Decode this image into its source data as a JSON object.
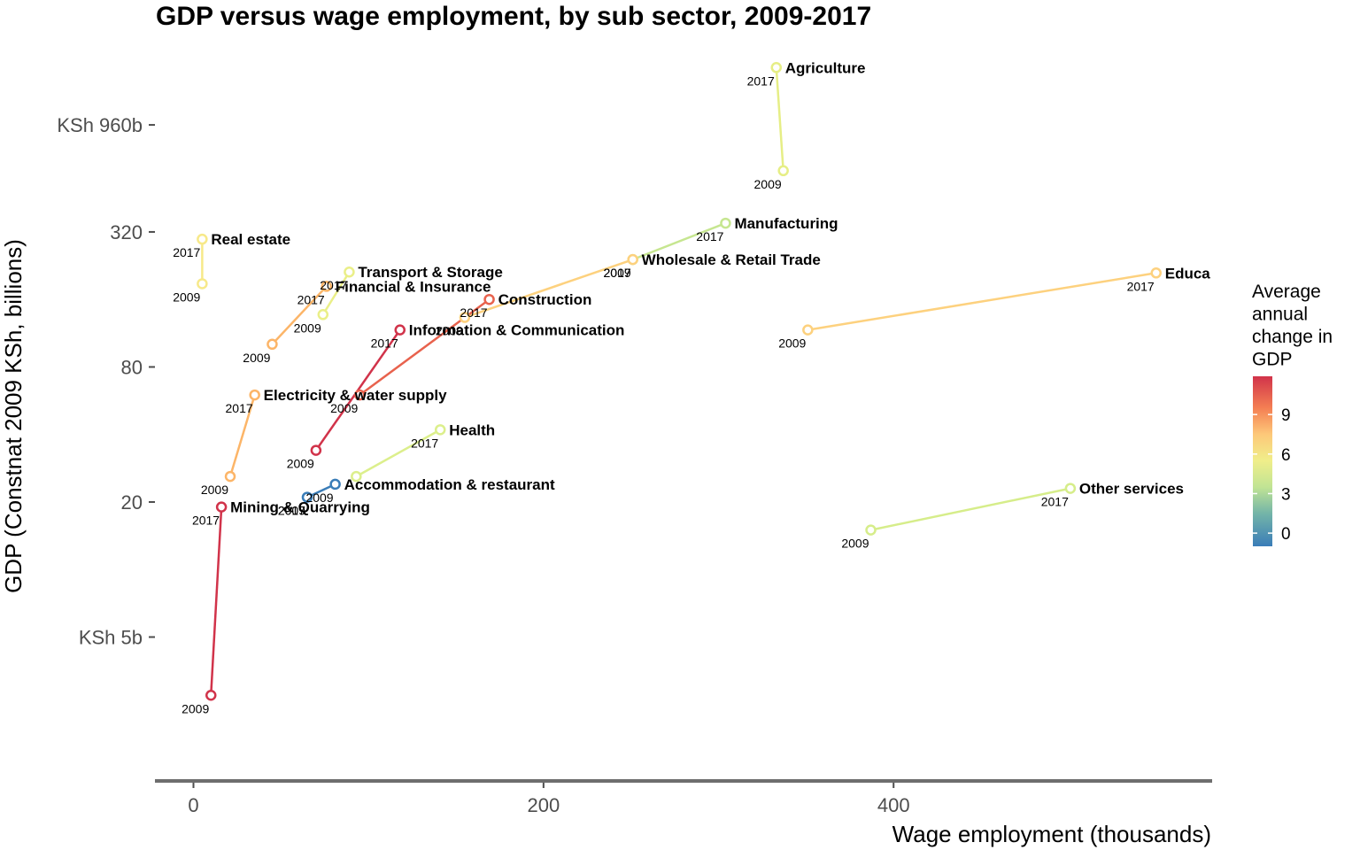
{
  "chart_data": {
    "type": "scatter",
    "title": "GDP versus wage employment, by sub sector, 2009-2017",
    "xlabel": "Wage employment (thousands)",
    "ylabel": "GDP (Constnat 2009 KSh, billions)",
    "x_scale": "linear",
    "y_scale": "log",
    "xlim": [
      -22,
      582
    ],
    "ylim": [
      1.25,
      2450
    ],
    "x_ticks": [
      {
        "value": 0,
        "label": "0"
      },
      {
        "value": 200,
        "label": "200"
      },
      {
        "value": 400,
        "label": "400"
      }
    ],
    "y_ticks": [
      {
        "value": 5,
        "label": "KSh 5b"
      },
      {
        "value": 20,
        "label": "20"
      },
      {
        "value": 80,
        "label": "80"
      },
      {
        "value": 320,
        "label": "320"
      },
      {
        "value": 960,
        "label": "KSh 960b"
      }
    ],
    "grid": false,
    "legend": {
      "title_lines": [
        "Average",
        "annual",
        "change in",
        "GDP"
      ],
      "position": "right",
      "type": "colorbar",
      "range": [
        -1,
        11.9
      ],
      "ticks": [
        {
          "value": 0,
          "label": "0"
        },
        {
          "value": 3,
          "label": "3"
        },
        {
          "value": 6,
          "label": "6"
        },
        {
          "value": 9,
          "label": "9"
        }
      ],
      "gradient": [
        {
          "value": -1,
          "color": "#3a7db8"
        },
        {
          "value": 1.5,
          "color": "#74b5a8"
        },
        {
          "value": 3.5,
          "color": "#c1e494"
        },
        {
          "value": 5.5,
          "color": "#f0ee8a"
        },
        {
          "value": 7.5,
          "color": "#fdc879"
        },
        {
          "value": 9.5,
          "color": "#f47f53"
        },
        {
          "value": 11.9,
          "color": "#d1334a"
        }
      ]
    },
    "series": [
      {
        "name": "Agriculture",
        "change": 5.2,
        "color": "#e6ee86",
        "x_2009": 337,
        "gdp_2009": 600,
        "x_2017": 333,
        "gdp_2017": 1730
      },
      {
        "name": "Manufacturing",
        "change": 4.0,
        "color": "#c6e690",
        "x_2009": 251,
        "gdp_2009": 241,
        "x_2017": 304,
        "gdp_2017": 350
      },
      {
        "name": "Wholesale & Retail Trade",
        "change": 6.8,
        "color": "#fdd17e",
        "x_2009": 155,
        "gdp_2009": 133,
        "x_2017": 251,
        "gdp_2017": 241
      },
      {
        "name": "Education",
        "label": "Educa",
        "change": 6.7,
        "color": "#fdd17e",
        "x_2009": 351,
        "gdp_2009": 117,
        "x_2017": 550,
        "gdp_2017": 210
      },
      {
        "name": "Real estate",
        "change": 5.5,
        "color": "#f7e98a",
        "x_2009": 5,
        "gdp_2009": 188,
        "x_2017": 5,
        "gdp_2017": 297
      },
      {
        "name": "Transport & Storage",
        "change": 5.0,
        "color": "#eaef88",
        "x_2009": 74,
        "gdp_2009": 137,
        "x_2017": 89,
        "gdp_2017": 212
      },
      {
        "name": "Financial & Insurance",
        "change": 7.3,
        "color": "#fcb568",
        "x_2009": 45,
        "gdp_2009": 101,
        "x_2017": 76,
        "gdp_2017": 183
      },
      {
        "name": "Construction",
        "change": 10.5,
        "color": "#e8624d",
        "x_2009": 95,
        "gdp_2009": 60,
        "x_2017": 169,
        "gdp_2017": 160
      },
      {
        "name": "Information & Communication",
        "change": 11.8,
        "color": "#d1334a",
        "x_2009": 70,
        "gdp_2009": 34,
        "x_2017": 118,
        "gdp_2017": 117
      },
      {
        "name": "Electricity & water supply",
        "change": 7.4,
        "color": "#fcb568",
        "x_2009": 21,
        "gdp_2009": 26,
        "x_2017": 35,
        "gdp_2017": 60
      },
      {
        "name": "Health",
        "change": 4.6,
        "color": "#dcef8c",
        "x_2009": 93,
        "gdp_2009": 26,
        "x_2017": 141,
        "gdp_2017": 42
      },
      {
        "name": "Accommodation & restaurant",
        "change": -0.8,
        "color": "#3a7db8",
        "x_2009": 81,
        "gdp_2009": 24,
        "x_2017": 65,
        "gdp_2017": 21
      },
      {
        "name": "Mining & Quarrying",
        "change": 11.9,
        "color": "#d1334a",
        "x_2009": 10,
        "gdp_2009": 2.75,
        "x_2017": 16,
        "gdp_2017": 19
      },
      {
        "name": "Other services",
        "change": 4.4,
        "color": "#d6ed8a",
        "x_2009": 387,
        "gdp_2009": 15,
        "x_2017": 501,
        "gdp_2017": 23
      }
    ],
    "point_labels": [
      {
        "text": "Agriculture",
        "kind": "sector",
        "x": 333,
        "y": 1730
      },
      {
        "text": "2017",
        "kind": "year",
        "x": 333,
        "y": 1730
      },
      {
        "text": "2009",
        "kind": "year",
        "x": 337,
        "y": 600
      },
      {
        "text": "Manufacturing",
        "kind": "sector",
        "x": 304,
        "y": 350
      },
      {
        "text": "2017",
        "kind": "year",
        "x": 304,
        "y": 350
      },
      {
        "text": "Wholesale & Retail Trade",
        "kind": "sector",
        "x": 251,
        "y": 241
      },
      {
        "text": "2017",
        "kind": "year",
        "x": 251,
        "y": 241
      },
      {
        "text": "2009",
        "kind": "year",
        "x": 251,
        "y": 241
      },
      {
        "text": "Educa",
        "kind": "sector",
        "x": 550,
        "y": 210
      },
      {
        "text": "2017",
        "kind": "year",
        "x": 550,
        "y": 210
      },
      {
        "text": "2009",
        "kind": "year",
        "x": 351,
        "y": 117
      },
      {
        "text": "Real estate",
        "kind": "sector",
        "x": 5,
        "y": 297
      },
      {
        "text": "2017",
        "kind": "year",
        "x": 5,
        "y": 297
      },
      {
        "text": "2009",
        "kind": "year",
        "x": 5,
        "y": 188
      },
      {
        "text": "Transport & Storage",
        "kind": "sector",
        "x": 89,
        "y": 212
      },
      {
        "text": "2017",
        "kind": "year",
        "x": 89,
        "y": 212
      },
      {
        "text": "2009",
        "kind": "year",
        "x": 74,
        "y": 137
      },
      {
        "text": "Financial & Insurance",
        "kind": "sector",
        "x": 76,
        "y": 183
      },
      {
        "text": "2017",
        "kind": "year",
        "x": 76,
        "y": 183
      },
      {
        "text": "2009",
        "kind": "year",
        "x": 45,
        "y": 101
      },
      {
        "text": "Construction",
        "kind": "sector",
        "x": 169,
        "y": 160
      },
      {
        "text": "2017",
        "kind": "year",
        "x": 169,
        "y": 160
      },
      {
        "text": "2009",
        "kind": "year",
        "x": 155,
        "y": 133
      },
      {
        "text": "Information & Communication",
        "kind": "sector",
        "x": 118,
        "y": 117
      },
      {
        "text": "2017",
        "kind": "year",
        "x": 118,
        "y": 117
      },
      {
        "text": "2009",
        "kind": "year",
        "x": 70,
        "y": 34
      },
      {
        "text": "Electricity & water supply",
        "kind": "sector",
        "x": 35,
        "y": 60
      },
      {
        "text": "2017",
        "kind": "year",
        "x": 35,
        "y": 60
      },
      {
        "text": "2009",
        "kind": "year",
        "x": 21,
        "y": 26
      },
      {
        "text": "2009",
        "kind": "year",
        "x": 95,
        "y": 60
      },
      {
        "text": "Health",
        "kind": "sector",
        "x": 141,
        "y": 42
      },
      {
        "text": "2017",
        "kind": "year",
        "x": 141,
        "y": 42
      },
      {
        "text": "Accommodation & restaurant",
        "kind": "sector",
        "x": 81,
        "y": 24
      },
      {
        "text": "2009",
        "kind": "year",
        "x": 81,
        "y": 24
      },
      {
        "text": "2017",
        "kind": "year",
        "x": 65,
        "y": 21
      },
      {
        "text": "Mining & Quarrying",
        "kind": "sector",
        "x": 16,
        "y": 19
      },
      {
        "text": "2017",
        "kind": "year",
        "x": 16,
        "y": 19
      },
      {
        "text": "2009",
        "kind": "year",
        "x": 10,
        "y": 2.75
      },
      {
        "text": "2009",
        "kind": "year",
        "x": 65,
        "y": 21
      },
      {
        "text": "Other services",
        "kind": "sector",
        "x": 501,
        "y": 23
      },
      {
        "text": "2017",
        "kind": "year",
        "x": 501,
        "y": 23
      },
      {
        "text": "2009",
        "kind": "year",
        "x": 387,
        "y": 15
      }
    ]
  }
}
